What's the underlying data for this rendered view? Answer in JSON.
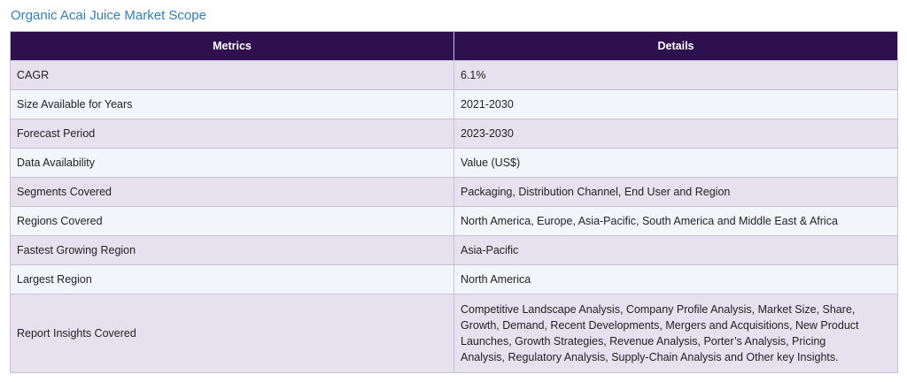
{
  "title": "Organic Acai Juice Market Scope",
  "table": {
    "headers": [
      "Metrics",
      "Details"
    ],
    "rows": [
      {
        "metric": "CAGR",
        "detail": "6.1%"
      },
      {
        "metric": "Size Available for Years",
        "detail": "2021-2030"
      },
      {
        "metric": "Forecast Period",
        "detail": "2023-2030"
      },
      {
        "metric": "Data Availability",
        "detail": "Value (US$)"
      },
      {
        "metric": "Segments Covered",
        "detail": "Packaging, Distribution Channel, End User and Region"
      },
      {
        "metric": "Regions Covered",
        "detail": "North America, Europe, Asia-Pacific, South America and Middle East & Africa"
      },
      {
        "metric": "Fastest Growing Region",
        "detail": "Asia-Pacific"
      },
      {
        "metric": "Largest Region",
        "detail": "North America"
      },
      {
        "metric": "Report Insights Covered",
        "detail": "Competitive Landscape Analysis, Company Profile Analysis, Market Size, Share, Growth, Demand, Recent Developments, Mergers and Acquisitions, New Product Launches, Growth Strategies, Revenue Analysis, Porter’s Analysis, Pricing Analysis, Regulatory Analysis, Supply-Chain Analysis and Other key Insights."
      }
    ]
  },
  "colors": {
    "title": "#2f7fc1",
    "header_bg": "#2e0f4f",
    "row_odd_bg": "#e6e1ef",
    "row_even_bg": "#f2f6fb",
    "border": "#c9bfd8"
  }
}
